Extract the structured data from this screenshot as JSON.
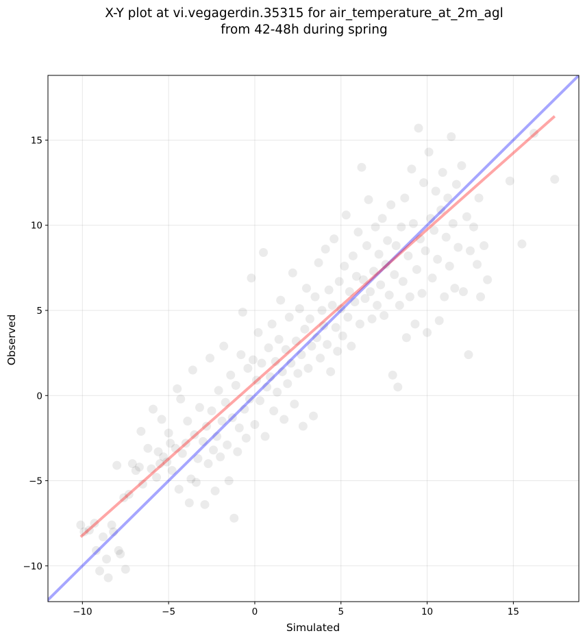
{
  "chart_data": {
    "type": "scatter",
    "title": [
      "X-Y plot at vi.vegagerdin.35315 for air_temperature_at_2m_agl",
      "from 42-48h during spring"
    ],
    "xlabel": "Simulated",
    "ylabel": "Observed",
    "xlim": [
      -12,
      18.8
    ],
    "ylim": [
      -12.1,
      18.8
    ],
    "grid": true,
    "x_ticks": [
      -10,
      -5,
      0,
      5,
      10,
      15
    ],
    "x_tick_labels": [
      "−10",
      "−5",
      "0",
      "5",
      "10",
      "15"
    ],
    "y_ticks": [
      -10,
      -5,
      0,
      5,
      10,
      15
    ],
    "y_tick_labels": [
      "−10",
      "−5",
      "0",
      "5",
      "10",
      "15"
    ],
    "point_color": "#000000",
    "point_alpha": 0.08,
    "reference_line": {
      "type": "y = x",
      "color": "#0000ff",
      "alpha": 0.35
    },
    "regression_line": {
      "color": "#ff0000",
      "alpha": 0.35,
      "x": [
        -10.1,
        17.4
      ],
      "y": [
        -8.3,
        16.4
      ]
    },
    "points": [
      [
        -10.1,
        -7.6
      ],
      [
        -9.9,
        -8.0
      ],
      [
        -9.6,
        -7.9
      ],
      [
        -9.3,
        -7.5
      ],
      [
        -9.2,
        -9.1
      ],
      [
        -9.0,
        -10.3
      ],
      [
        -8.8,
        -8.3
      ],
      [
        -8.6,
        -9.6
      ],
      [
        -8.5,
        -10.7
      ],
      [
        -8.3,
        -7.6
      ],
      [
        -8.2,
        -8.0
      ],
      [
        -8.0,
        -4.1
      ],
      [
        -7.9,
        -9.1
      ],
      [
        -7.8,
        -9.3
      ],
      [
        -7.6,
        -6.0
      ],
      [
        -7.5,
        -10.2
      ],
      [
        -7.3,
        -5.8
      ],
      [
        -7.1,
        -4.0
      ],
      [
        -6.9,
        -4.4
      ],
      [
        -6.7,
        -4.2
      ],
      [
        -6.6,
        -2.1
      ],
      [
        -6.5,
        -5.2
      ],
      [
        -6.2,
        -3.1
      ],
      [
        -6.0,
        -4.3
      ],
      [
        -5.9,
        -0.8
      ],
      [
        -5.7,
        -4.8
      ],
      [
        -5.6,
        -3.3
      ],
      [
        -5.5,
        -4.0
      ],
      [
        -5.4,
        -1.4
      ],
      [
        -5.3,
        -3.6
      ],
      [
        -5.1,
        -3.9
      ],
      [
        -5.0,
        -2.2
      ],
      [
        -4.9,
        -2.8
      ],
      [
        -4.8,
        -4.4
      ],
      [
        -4.6,
        -3.1
      ],
      [
        -4.4,
        -5.5
      ],
      [
        -4.5,
        0.4
      ],
      [
        -4.3,
        -0.2
      ],
      [
        -4.2,
        -3.4
      ],
      [
        -4.0,
        -2.8
      ],
      [
        -3.9,
        -1.5
      ],
      [
        -3.8,
        -6.3
      ],
      [
        -3.7,
        -4.9
      ],
      [
        -3.6,
        1.5
      ],
      [
        -3.5,
        -2.3
      ],
      [
        -3.4,
        -5.1
      ],
      [
        -3.3,
        -3.7
      ],
      [
        -3.2,
        -0.7
      ],
      [
        -3.0,
        -2.7
      ],
      [
        -2.9,
        -6.4
      ],
      [
        -2.8,
        -1.8
      ],
      [
        -2.7,
        -4.0
      ],
      [
        -2.6,
        2.2
      ],
      [
        -2.5,
        -0.9
      ],
      [
        -2.4,
        -3.2
      ],
      [
        -2.3,
        -5.6
      ],
      [
        -2.2,
        -2.4
      ],
      [
        -2.1,
        0.3
      ],
      [
        -2.0,
        -3.6
      ],
      [
        -1.9,
        -1.5
      ],
      [
        -1.8,
        2.9
      ],
      [
        -1.7,
        -0.4
      ],
      [
        -1.6,
        -2.9
      ],
      [
        -1.5,
        -5.0
      ],
      [
        -1.4,
        1.2
      ],
      [
        -1.3,
        -1.3
      ],
      [
        -1.2,
        -7.2
      ],
      [
        -1.1,
        0.6
      ],
      [
        -1.0,
        -3.3
      ],
      [
        -0.9,
        -1.9
      ],
      [
        -0.8,
        2.4
      ],
      [
        -0.7,
        4.9
      ],
      [
        -0.6,
        -0.8
      ],
      [
        -0.5,
        -2.5
      ],
      [
        -0.4,
        1.6
      ],
      [
        -0.3,
        -0.2
      ],
      [
        -0.2,
        6.9
      ],
      [
        -0.1,
        2.1
      ],
      [
        0.0,
        -1.7
      ],
      [
        0.1,
        0.9
      ],
      [
        0.2,
        3.7
      ],
      [
        0.3,
        -0.3
      ],
      [
        0.4,
        1.9
      ],
      [
        0.5,
        8.4
      ],
      [
        0.6,
        -2.4
      ],
      [
        0.7,
        0.5
      ],
      [
        0.8,
        2.8
      ],
      [
        0.9,
        1.1
      ],
      [
        1.0,
        4.2
      ],
      [
        1.1,
        -0.9
      ],
      [
        1.2,
        2.0
      ],
      [
        1.3,
        0.2
      ],
      [
        1.4,
        3.3
      ],
      [
        1.5,
        5.6
      ],
      [
        1.6,
        1.4
      ],
      [
        1.7,
        -1.4
      ],
      [
        1.8,
        2.7
      ],
      [
        1.9,
        0.7
      ],
      [
        2.0,
        4.6
      ],
      [
        2.1,
        1.9
      ],
      [
        2.2,
        7.2
      ],
      [
        2.3,
        -0.5
      ],
      [
        2.4,
        3.2
      ],
      [
        2.5,
        1.3
      ],
      [
        2.6,
        5.1
      ],
      [
        2.7,
        2.4
      ],
      [
        2.8,
        -1.8
      ],
      [
        2.9,
        3.9
      ],
      [
        3.0,
        6.3
      ],
      [
        3.1,
        1.6
      ],
      [
        3.2,
        4.5
      ],
      [
        3.3,
        2.9
      ],
      [
        3.4,
        -1.2
      ],
      [
        3.5,
        5.8
      ],
      [
        3.6,
        3.4
      ],
      [
        3.7,
        7.8
      ],
      [
        3.8,
        2.2
      ],
      [
        3.9,
        5.0
      ],
      [
        4.0,
        4.1
      ],
      [
        4.1,
        8.6
      ],
      [
        4.2,
        3.0
      ],
      [
        4.3,
        6.2
      ],
      [
        4.4,
        1.4
      ],
      [
        4.5,
        5.3
      ],
      [
        4.6,
        9.2
      ],
      [
        4.7,
        4.0
      ],
      [
        4.8,
        2.6
      ],
      [
        4.9,
        6.7
      ],
      [
        5.0,
        5.1
      ],
      [
        5.1,
        3.5
      ],
      [
        5.2,
        7.6
      ],
      [
        5.3,
        10.6
      ],
      [
        5.4,
        4.6
      ],
      [
        5.5,
        6.1
      ],
      [
        5.6,
        2.9
      ],
      [
        5.7,
        8.2
      ],
      [
        5.8,
        5.5
      ],
      [
        5.9,
        7.0
      ],
      [
        6.0,
        9.6
      ],
      [
        6.1,
        4.2
      ],
      [
        6.2,
        13.4
      ],
      [
        6.3,
        6.8
      ],
      [
        6.4,
        5.7
      ],
      [
        6.5,
        8.8
      ],
      [
        6.6,
        11.5
      ],
      [
        6.7,
        6.1
      ],
      [
        6.8,
        4.5
      ],
      [
        6.9,
        7.3
      ],
      [
        7.0,
        9.9
      ],
      [
        7.1,
        5.3
      ],
      [
        7.2,
        8.3
      ],
      [
        7.3,
        6.5
      ],
      [
        7.4,
        10.4
      ],
      [
        7.5,
        4.7
      ],
      [
        7.6,
        7.7
      ],
      [
        7.7,
        9.1
      ],
      [
        7.8,
        5.9
      ],
      [
        7.9,
        11.2
      ],
      [
        8.0,
        1.2
      ],
      [
        8.1,
        7.1
      ],
      [
        8.2,
        8.8
      ],
      [
        8.3,
        0.5
      ],
      [
        8.4,
        5.3
      ],
      [
        8.5,
        9.9
      ],
      [
        8.6,
        6.7
      ],
      [
        8.7,
        11.6
      ],
      [
        8.8,
        3.4
      ],
      [
        8.9,
        8.2
      ],
      [
        9.0,
        5.8
      ],
      [
        9.1,
        13.3
      ],
      [
        9.2,
        10.1
      ],
      [
        9.3,
        4.2
      ],
      [
        9.4,
        7.4
      ],
      [
        9.5,
        15.7
      ],
      [
        9.6,
        9.2
      ],
      [
        9.7,
        6.0
      ],
      [
        9.8,
        12.5
      ],
      [
        9.9,
        8.5
      ],
      [
        10.0,
        3.7
      ],
      [
        10.1,
        14.3
      ],
      [
        10.2,
        10.4
      ],
      [
        10.3,
        6.9
      ],
      [
        10.4,
        9.7
      ],
      [
        10.5,
        12.0
      ],
      [
        10.6,
        8.0
      ],
      [
        10.7,
        4.4
      ],
      [
        10.8,
        10.9
      ],
      [
        10.9,
        13.1
      ],
      [
        11.0,
        5.8
      ],
      [
        11.1,
        9.3
      ],
      [
        11.2,
        11.6
      ],
      [
        11.3,
        7.6
      ],
      [
        11.4,
        15.2
      ],
      [
        11.5,
        10.1
      ],
      [
        11.6,
        6.3
      ],
      [
        11.7,
        12.4
      ],
      [
        11.8,
        8.7
      ],
      [
        12.0,
        13.5
      ],
      [
        12.1,
        6.1
      ],
      [
        12.3,
        10.5
      ],
      [
        12.4,
        2.4
      ],
      [
        12.5,
        8.5
      ],
      [
        12.7,
        9.9
      ],
      [
        12.9,
        7.7
      ],
      [
        13.0,
        11.6
      ],
      [
        13.1,
        5.8
      ],
      [
        13.3,
        8.8
      ],
      [
        13.5,
        6.8
      ],
      [
        14.8,
        12.6
      ],
      [
        15.5,
        8.9
      ],
      [
        16.2,
        15.4
      ],
      [
        17.4,
        12.7
      ]
    ]
  }
}
